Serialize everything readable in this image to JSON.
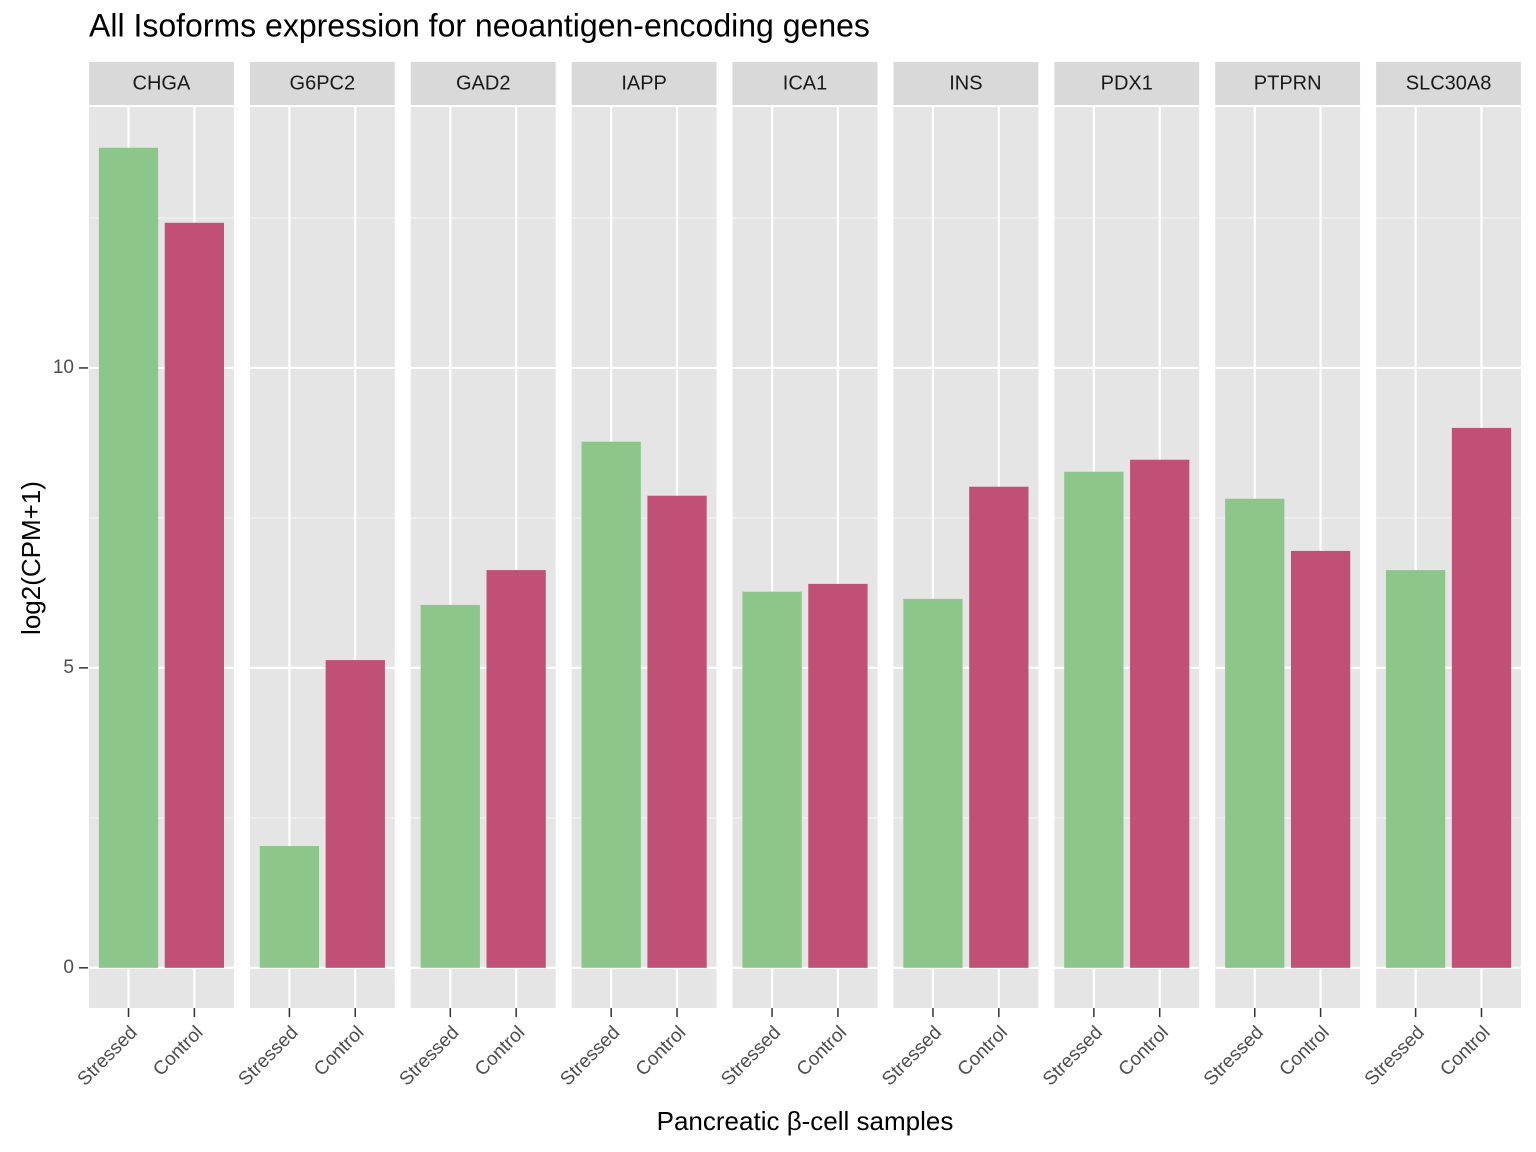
{
  "chart_data": {
    "type": "bar",
    "title": "All Isoforms expression for neoantigen-encoding genes",
    "x_label": "Pancreatic β-cell samples",
    "y_label": "log2(CPM+1)",
    "facets": [
      "CHGA",
      "G6PC2",
      "GAD2",
      "IAPP",
      "ICA1",
      "INS",
      "PDX1",
      "PTPRN",
      "SLC30A8"
    ],
    "categories": [
      "Stressed",
      "Control"
    ],
    "colors": [
      "#8dc68a",
      "#c05076"
    ],
    "values": [
      [
        13.67,
        12.42
      ],
      [
        2.03,
        5.13
      ],
      [
        6.05,
        6.63
      ],
      [
        8.77,
        7.87
      ],
      [
        6.27,
        6.4
      ],
      [
        6.15,
        8.02
      ],
      [
        8.27,
        8.47
      ],
      [
        7.82,
        6.95
      ],
      [
        6.63,
        9.0
      ]
    ],
    "ylim": [
      -0.67,
      14.35
    ],
    "yticks": [
      0,
      5,
      10
    ],
    "minor_yticks": [
      2.5,
      7.5,
      12.5
    ],
    "grid": true
  }
}
